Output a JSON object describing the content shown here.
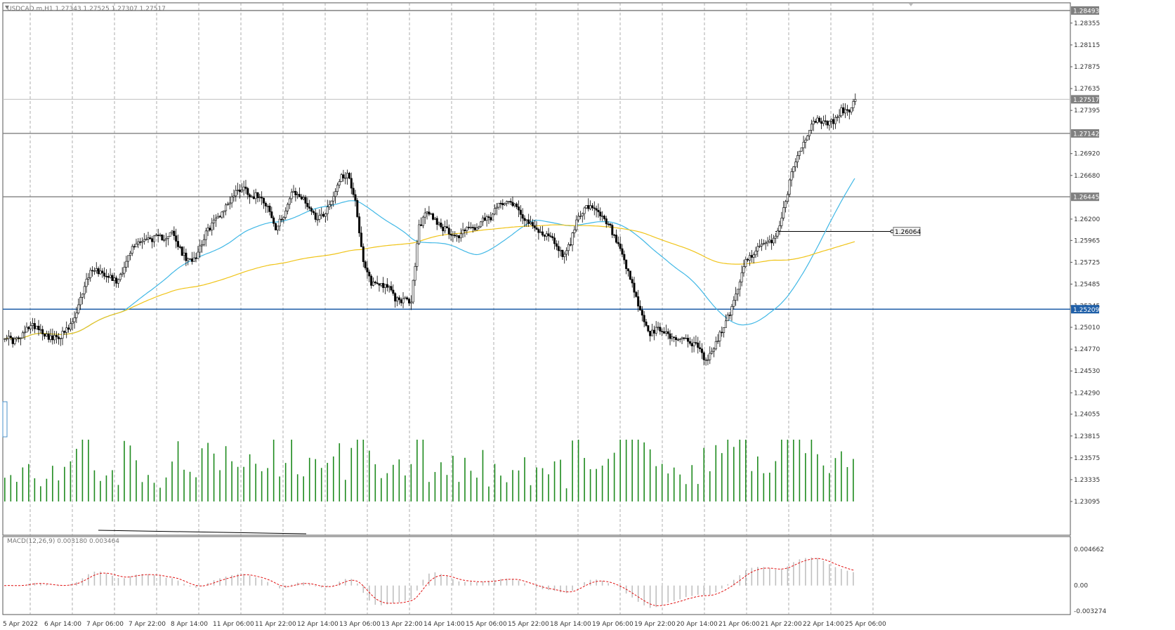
{
  "header": {
    "symbol_info": "USDCAD.m,H1  1.27343 1.27525 1.27307 1.27517"
  },
  "chart_data": [
    {
      "type": "candlestick",
      "symbol": "USDCAD.m",
      "timeframe": "H1",
      "ohlc_last": {
        "open": 1.27343,
        "high": 1.27525,
        "low": 1.27307,
        "close": 1.27517
      },
      "ylim": [
        1.23095,
        1.28493
      ],
      "y_ticks": [
        "1.28355",
        "1.28115",
        "1.27875",
        "1.27635",
        "1.27395",
        "1.26920",
        "1.26680",
        "1.26200",
        "1.25965",
        "1.25725",
        "1.25485",
        "1.25245",
        "1.25010",
        "1.24770",
        "1.24530",
        "1.24290",
        "1.24055",
        "1.23815",
        "1.23575",
        "1.23335",
        "1.23095"
      ],
      "price_tags": [
        {
          "label": "1.28493",
          "value": 1.28493,
          "style": "gray"
        },
        {
          "label": "1.27517",
          "value": 1.27517,
          "style": "gray"
        },
        {
          "label": "1.27142",
          "value": 1.27142,
          "style": "gray"
        },
        {
          "label": "1.26445",
          "value": 1.26445,
          "style": "gray"
        },
        {
          "label": "1.25209",
          "value": 1.25209,
          "style": "blue"
        }
      ],
      "horizontal_levels": [
        {
          "value": 1.28493,
          "color": "#808080"
        },
        {
          "value": 1.27142,
          "color": "#808080"
        },
        {
          "value": 1.26445,
          "color": "#808080"
        },
        {
          "value": 1.25209,
          "color": "#1f5fa8"
        }
      ],
      "current_price": {
        "value": 1.27517,
        "color": "#c0c0c0"
      },
      "annotation": {
        "label": "1.26064",
        "value": 1.26064
      },
      "x_ticks": [
        "5 Apr 2022",
        "6 Apr 14:00",
        "7 Apr 06:00",
        "7 Apr 22:00",
        "8 Apr 14:00",
        "11 Apr 06:00",
        "11 Apr 22:00",
        "12 Apr 14:00",
        "13 Apr 06:00",
        "13 Apr 22:00",
        "14 Apr 14:00",
        "15 Apr 06:00",
        "15 Apr 22:00",
        "18 Apr 14:00",
        "19 Apr 06:00",
        "19 Apr 22:00",
        "20 Apr 14:00",
        "21 Apr 06:00",
        "21 Apr 22:00",
        "22 Apr 14:00",
        "25 Apr 06:00"
      ],
      "price_path": [
        [
          0,
          1.2492
        ],
        [
          4,
          1.2486
        ],
        [
          8,
          1.2489
        ],
        [
          12,
          1.2502
        ],
        [
          16,
          1.2503
        ],
        [
          20,
          1.2494
        ],
        [
          24,
          1.2488
        ],
        [
          28,
          1.2492
        ],
        [
          32,
          1.2499
        ],
        [
          36,
          1.2515
        ],
        [
          40,
          1.2548
        ],
        [
          44,
          1.2566
        ],
        [
          48,
          1.2562
        ],
        [
          52,
          1.2559
        ],
        [
          56,
          1.2551
        ],
        [
          60,
          1.2568
        ],
        [
          64,
          1.2588
        ],
        [
          68,
          1.2597
        ],
        [
          72,
          1.2598
        ],
        [
          76,
          1.2599
        ],
        [
          80,
          1.26
        ],
        [
          84,
          1.2605
        ],
        [
          88,
          1.2586
        ],
        [
          92,
          1.2573
        ],
        [
          96,
          1.258
        ],
        [
          100,
          1.26
        ],
        [
          104,
          1.2615
        ],
        [
          108,
          1.2625
        ],
        [
          112,
          1.2637
        ],
        [
          116,
          1.265
        ],
        [
          120,
          1.2655
        ],
        [
          124,
          1.2645
        ],
        [
          128,
          1.2647
        ],
        [
          132,
          1.2634
        ],
        [
          136,
          1.2608
        ],
        [
          140,
          1.2625
        ],
        [
          144,
          1.2648
        ],
        [
          148,
          1.2646
        ],
        [
          152,
          1.2636
        ],
        [
          156,
          1.2622
        ],
        [
          160,
          1.2625
        ],
        [
          164,
          1.264
        ],
        [
          168,
          1.2664
        ],
        [
          172,
          1.267
        ],
        [
          176,
          1.2642
        ],
        [
          180,
          1.257
        ],
        [
          184,
          1.255
        ],
        [
          188,
          1.2549
        ],
        [
          192,
          1.2547
        ],
        [
          196,
          1.2532
        ],
        [
          200,
          1.2531
        ],
        [
          204,
          1.2529
        ],
        [
          208,
          1.2612
        ],
        [
          212,
          1.2628
        ],
        [
          216,
          1.262
        ],
        [
          220,
          1.261
        ],
        [
          224,
          1.2605
        ],
        [
          228,
          1.26
        ],
        [
          232,
          1.2613
        ],
        [
          236,
          1.2607
        ],
        [
          240,
          1.2618
        ],
        [
          244,
          1.2621
        ],
        [
          248,
          1.2636
        ],
        [
          252,
          1.2642
        ],
        [
          256,
          1.2636
        ],
        [
          260,
          1.2624
        ],
        [
          264,
          1.2613
        ],
        [
          268,
          1.2606
        ],
        [
          272,
          1.2603
        ],
        [
          276,
          1.2595
        ],
        [
          280,
          1.258
        ],
        [
          284,
          1.2594
        ],
        [
          288,
          1.2625
        ],
        [
          292,
          1.2633
        ],
        [
          296,
          1.263
        ],
        [
          300,
          1.2621
        ],
        [
          304,
          1.261
        ],
        [
          308,
          1.259
        ],
        [
          312,
          1.2566
        ],
        [
          316,
          1.254
        ],
        [
          320,
          1.2512
        ],
        [
          324,
          1.2493
        ],
        [
          328,
          1.2499
        ],
        [
          332,
          1.2495
        ],
        [
          336,
          1.2488
        ],
        [
          340,
          1.249
        ],
        [
          344,
          1.2485
        ],
        [
          348,
          1.2479
        ],
        [
          352,
          1.2463
        ],
        [
          356,
          1.2478
        ],
        [
          360,
          1.2498
        ],
        [
          364,
          1.2516
        ],
        [
          368,
          1.2545
        ],
        [
          372,
          1.2573
        ],
        [
          376,
          1.2584
        ],
        [
          380,
          1.259
        ],
        [
          384,
          1.2594
        ],
        [
          388,
          1.2605
        ],
        [
          392,
          1.264
        ],
        [
          396,
          1.268
        ],
        [
          400,
          1.2698
        ],
        [
          404,
          1.272
        ],
        [
          408,
          1.273
        ],
        [
          412,
          1.2725
        ],
        [
          416,
          1.2727
        ],
        [
          420,
          1.274
        ],
        [
          424,
          1.2737
        ],
        [
          427,
          1.27517
        ]
      ],
      "bar_count": 428,
      "series": [
        {
          "name": "MA fast",
          "color": "#41b8e6"
        },
        {
          "name": "MA slow",
          "color": "#f0c419"
        },
        {
          "name": "Volume",
          "color": "#1e8a1e"
        }
      ]
    },
    {
      "type": "bar",
      "indicator": "MACD(12,26,9)",
      "label": "MACD(12,26,9) 0.003180 0.003464",
      "main": 0.00318,
      "signal": 0.003464,
      "ylim": [
        -0.003274,
        0.004662
      ],
      "y_ticks": [
        "0.004662",
        "0.00",
        "-0.003274"
      ],
      "colors": {
        "histogram": "#c0c0c0",
        "signal": "#e01010"
      }
    }
  ],
  "colors": {
    "candle": "#000000",
    "grid": "#888888",
    "blue_level": "#1f5fa8",
    "tag_gray": "#808080",
    "tag_blue": "#1f5fa8"
  }
}
